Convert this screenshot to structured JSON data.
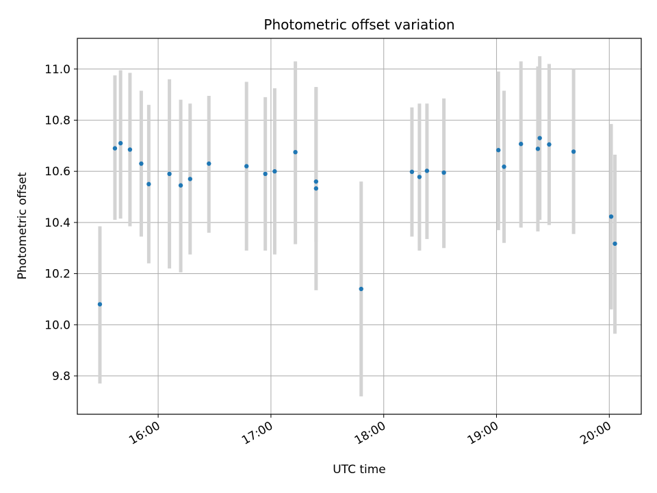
{
  "chart_data": {
    "type": "scatter",
    "title": "Photometric offset variation",
    "xlabel": "UTC time",
    "ylabel": "Photometric offset",
    "x_tick_labels": [
      "16:00",
      "17:00",
      "18:00",
      "19:00",
      "20:00"
    ],
    "x_tick_hours": [
      16,
      17,
      18,
      19,
      20
    ],
    "y_ticks": [
      9.8,
      10.0,
      10.2,
      10.4,
      10.6,
      10.8,
      11.0
    ],
    "y_tick_labels": [
      "9.8",
      "10.0",
      "10.2",
      "10.4",
      "10.6",
      "10.8",
      "11.0"
    ],
    "xlim": [
      "15:17",
      "20:17"
    ],
    "ylim": [
      9.65,
      11.12
    ],
    "grid": true,
    "marker_color": "#1f77b4",
    "errorbar_color": "#d3d3d3",
    "series": [
      {
        "points": [
          {
            "time": "15:29",
            "y": 10.08,
            "lo": 9.77,
            "hi": 10.385
          },
          {
            "time": "15:37",
            "y": 10.69,
            "lo": 10.41,
            "hi": 10.975
          },
          {
            "time": "15:40",
            "y": 10.71,
            "lo": 10.415,
            "hi": 10.995
          },
          {
            "time": "15:45",
            "y": 10.685,
            "lo": 10.385,
            "hi": 10.985
          },
          {
            "time": "15:51",
            "y": 10.63,
            "lo": 10.345,
            "hi": 10.915
          },
          {
            "time": "15:55",
            "y": 10.55,
            "lo": 10.24,
            "hi": 10.86
          },
          {
            "time": "16:06",
            "y": 10.59,
            "lo": 10.22,
            "hi": 10.96
          },
          {
            "time": "16:12",
            "y": 10.545,
            "lo": 10.205,
            "hi": 10.88
          },
          {
            "time": "16:17",
            "y": 10.57,
            "lo": 10.275,
            "hi": 10.865
          },
          {
            "time": "16:27",
            "y": 10.63,
            "lo": 10.36,
            "hi": 10.895
          },
          {
            "time": "16:47",
            "y": 10.62,
            "lo": 10.29,
            "hi": 10.95
          },
          {
            "time": "16:57",
            "y": 10.59,
            "lo": 10.29,
            "hi": 10.89
          },
          {
            "time": "17:02",
            "y": 10.6,
            "lo": 10.275,
            "hi": 10.925
          },
          {
            "time": "17:13",
            "y": 10.675,
            "lo": 10.315,
            "hi": 11.03
          },
          {
            "time": "17:24",
            "y": 10.56,
            "lo": 10.325,
            "hi": 10.93
          },
          {
            "time": "17:24",
            "y": 10.533,
            "lo": 10.135,
            "hi": 10.925
          },
          {
            "time": "17:48",
            "y": 10.14,
            "lo": 9.72,
            "hi": 10.56
          },
          {
            "time": "18:15",
            "y": 10.598,
            "lo": 10.345,
            "hi": 10.85
          },
          {
            "time": "18:19",
            "y": 10.578,
            "lo": 10.29,
            "hi": 10.865
          },
          {
            "time": "18:23",
            "y": 10.602,
            "lo": 10.335,
            "hi": 10.865
          },
          {
            "time": "18:32",
            "y": 10.595,
            "lo": 10.3,
            "hi": 10.885
          },
          {
            "time": "19:01",
            "y": 10.683,
            "lo": 10.37,
            "hi": 10.99
          },
          {
            "time": "19:04",
            "y": 10.618,
            "lo": 10.32,
            "hi": 10.915
          },
          {
            "time": "19:13",
            "y": 10.707,
            "lo": 10.38,
            "hi": 11.03
          },
          {
            "time": "19:22",
            "y": 10.688,
            "lo": 10.365,
            "hi": 11.01
          },
          {
            "time": "19:23",
            "y": 10.73,
            "lo": 10.41,
            "hi": 11.05
          },
          {
            "time": "19:28",
            "y": 10.705,
            "lo": 10.39,
            "hi": 11.02
          },
          {
            "time": "19:41",
            "y": 10.677,
            "lo": 10.355,
            "hi": 11.0
          },
          {
            "time": "20:01",
            "y": 10.423,
            "lo": 10.06,
            "hi": 10.785
          },
          {
            "time": "20:03",
            "y": 10.317,
            "lo": 9.965,
            "hi": 10.665
          }
        ]
      }
    ]
  }
}
